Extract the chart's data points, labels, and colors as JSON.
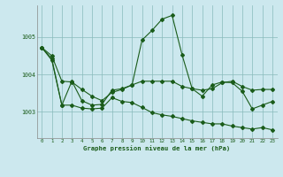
{
  "title": "Graphe pression niveau de la mer (hPa)",
  "bg_color": "#cce8ee",
  "line_color": "#1a5c1a",
  "grid_color": "#88bbbb",
  "xlim": [
    -0.5,
    23.5
  ],
  "ylim": [
    1002.3,
    1005.85
  ],
  "yticks": [
    1003,
    1004,
    1005
  ],
  "xticks": [
    0,
    1,
    2,
    3,
    4,
    5,
    6,
    7,
    8,
    9,
    10,
    11,
    12,
    13,
    14,
    15,
    16,
    17,
    18,
    19,
    20,
    21,
    22,
    23
  ],
  "series1": [
    1004.72,
    1004.5,
    1003.82,
    1003.8,
    1003.6,
    1003.42,
    1003.3,
    1003.52,
    1003.6,
    1003.72,
    1003.82,
    1003.82,
    1003.82,
    1003.82,
    1003.68,
    1003.62,
    1003.58,
    1003.62,
    1003.78,
    1003.82,
    1003.68,
    1003.58,
    1003.6,
    1003.6
  ],
  "series2": [
    1004.72,
    1004.42,
    1003.18,
    1003.82,
    1003.3,
    1003.18,
    1003.2,
    1003.58,
    1003.62,
    1003.72,
    1004.92,
    1005.18,
    1005.48,
    1005.58,
    1004.52,
    1003.62,
    1003.42,
    1003.72,
    1003.8,
    1003.78,
    1003.55,
    1003.08,
    1003.18,
    1003.28
  ],
  "series3": [
    1004.72,
    1004.38,
    1003.18,
    1003.18,
    1003.1,
    1003.08,
    1003.1,
    1003.38,
    1003.28,
    1003.25,
    1003.12,
    1002.98,
    1002.92,
    1002.88,
    1002.82,
    1002.76,
    1002.72,
    1002.68,
    1002.68,
    1002.62,
    1002.58,
    1002.54,
    1002.58,
    1002.52
  ]
}
